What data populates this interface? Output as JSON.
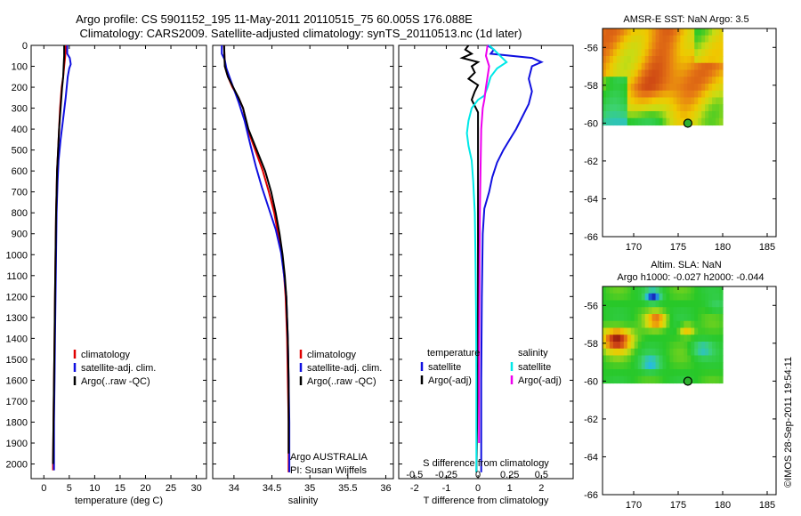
{
  "title": {
    "line1": "Argo profile: CS 5901152_195 11-May-2011 20110515_75 60.005S 176.088E",
    "line2": "Climatology: CARS2009. Satellite-adjusted climatology: synTS_20110513.nc (1d later)"
  },
  "colors": {
    "climatology": "#e00000",
    "satellite": "#1010e0",
    "argo": "#000000",
    "sal_satellite": "#00e8e8",
    "sal_argo": "#ee00ee"
  },
  "chart_data": [
    {
      "type": "line",
      "id": "temperature",
      "xlabel": "temperature (deg C)",
      "xlim": [
        -2.5,
        32
      ],
      "xticks": [
        0,
        5,
        10,
        15,
        20,
        25,
        30
      ],
      "ylim": [
        0,
        2070
      ],
      "yticks": [
        0,
        100,
        200,
        300,
        400,
        500,
        600,
        700,
        800,
        900,
        1000,
        1100,
        1200,
        1300,
        1400,
        1500,
        1600,
        1700,
        1800,
        1900,
        2000
      ],
      "legend": [
        "climatology",
        "satellite-adj. clim.",
        "Argo(..raw -QC)"
      ],
      "series": [
        {
          "name": "climatology",
          "color_key": "climatology",
          "points": [
            [
              4.3,
              0
            ],
            [
              4.2,
              50
            ],
            [
              4.0,
              100
            ],
            [
              3.8,
              150
            ],
            [
              3.5,
              200
            ],
            [
              3.2,
              300
            ],
            [
              3.0,
              400
            ],
            [
              2.8,
              500
            ],
            [
              2.6,
              600
            ],
            [
              2.5,
              700
            ],
            [
              2.4,
              800
            ],
            [
              2.3,
              1000
            ],
            [
              2.2,
              1200
            ],
            [
              2.1,
              1400
            ],
            [
              2.0,
              1600
            ],
            [
              1.9,
              1800
            ],
            [
              1.8,
              2000
            ],
            [
              1.8,
              2030
            ]
          ]
        },
        {
          "name": "satellite-adj. clim.",
          "color_key": "satellite",
          "points": [
            [
              4.6,
              0
            ],
            [
              4.6,
              40
            ],
            [
              5.1,
              60
            ],
            [
              5.3,
              90
            ],
            [
              5.0,
              110
            ],
            [
              4.7,
              150
            ],
            [
              4.3,
              250
            ],
            [
              3.8,
              350
            ],
            [
              3.3,
              450
            ],
            [
              2.9,
              550
            ],
            [
              2.7,
              650
            ],
            [
              2.5,
              800
            ],
            [
              2.4,
              1000
            ],
            [
              2.3,
              1200
            ],
            [
              2.2,
              1400
            ],
            [
              2.1,
              1600
            ],
            [
              2.0,
              1800
            ],
            [
              2.0,
              2030
            ]
          ]
        },
        {
          "name": "Argo(..raw -QC)",
          "color_key": "argo",
          "points": [
            [
              4.0,
              0
            ],
            [
              4.0,
              50
            ],
            [
              3.9,
              100
            ],
            [
              3.8,
              150
            ],
            [
              3.6,
              200
            ],
            [
              3.3,
              300
            ],
            [
              3.0,
              400
            ],
            [
              2.8,
              500
            ],
            [
              2.6,
              600
            ],
            [
              2.5,
              700
            ],
            [
              2.4,
              800
            ],
            [
              2.3,
              1000
            ],
            [
              2.2,
              1200
            ],
            [
              2.1,
              1400
            ],
            [
              2.0,
              1600
            ],
            [
              1.9,
              1800
            ],
            [
              1.8,
              2000
            ]
          ]
        }
      ]
    },
    {
      "type": "line",
      "id": "salinity",
      "xlabel": "salinity",
      "xlim": [
        33.72,
        36.1
      ],
      "xticks": [
        34,
        34.5,
        35,
        35.5,
        36
      ],
      "ylim": [
        0,
        2070
      ],
      "legend": [
        "climatology",
        "satellite-adj. clim.",
        "Argo(..raw -QC)"
      ],
      "annotation": [
        "Argo AUSTRALIA",
        "PI: Susan Wijffels"
      ],
      "series": [
        {
          "name": "climatology",
          "color_key": "climatology",
          "points": [
            [
              33.87,
              0
            ],
            [
              33.88,
              100
            ],
            [
              33.92,
              150
            ],
            [
              33.98,
              200
            ],
            [
              34.06,
              250
            ],
            [
              34.12,
              300
            ],
            [
              34.18,
              400
            ],
            [
              34.28,
              500
            ],
            [
              34.38,
              600
            ],
            [
              34.46,
              700
            ],
            [
              34.53,
              800
            ],
            [
              34.58,
              900
            ],
            [
              34.63,
              1000
            ],
            [
              34.66,
              1100
            ],
            [
              34.68,
              1200
            ],
            [
              34.7,
              1400
            ],
            [
              34.71,
              1600
            ],
            [
              34.72,
              1800
            ],
            [
              34.72,
              2040
            ]
          ]
        },
        {
          "name": "satellite-adj. clim.",
          "color_key": "satellite",
          "points": [
            [
              33.84,
              0
            ],
            [
              33.84,
              40
            ],
            [
              33.88,
              70
            ],
            [
              33.9,
              110
            ],
            [
              33.97,
              180
            ],
            [
              34.02,
              230
            ],
            [
              34.06,
              270
            ],
            [
              34.14,
              360
            ],
            [
              34.22,
              480
            ],
            [
              34.29,
              580
            ],
            [
              34.37,
              680
            ],
            [
              34.46,
              780
            ],
            [
              34.55,
              880
            ],
            [
              34.62,
              990
            ],
            [
              34.66,
              1100
            ],
            [
              34.69,
              1200
            ],
            [
              34.71,
              1400
            ],
            [
              34.72,
              1600
            ],
            [
              34.73,
              1800
            ],
            [
              34.73,
              2040
            ]
          ]
        },
        {
          "name": "Argo(..raw -QC)",
          "color_key": "argo",
          "points": [
            [
              33.87,
              0
            ],
            [
              33.88,
              100
            ],
            [
              33.92,
              150
            ],
            [
              33.99,
              200
            ],
            [
              34.06,
              250
            ],
            [
              34.12,
              300
            ],
            [
              34.19,
              400
            ],
            [
              34.3,
              500
            ],
            [
              34.41,
              600
            ],
            [
              34.49,
              700
            ],
            [
              34.55,
              800
            ],
            [
              34.6,
              900
            ],
            [
              34.64,
              1000
            ],
            [
              34.67,
              1100
            ],
            [
              34.69,
              1200
            ],
            [
              34.71,
              1400
            ],
            [
              34.72,
              1600
            ],
            [
              34.72,
              1800
            ],
            [
              34.72,
              1950
            ]
          ]
        }
      ]
    },
    {
      "type": "line",
      "id": "difference",
      "xlabel": "T difference from climatology",
      "xlabel_top": "S difference from climatology",
      "xlim": [
        -2.5,
        3.0
      ],
      "xticks": [
        -2,
        -1,
        0,
        1,
        2
      ],
      "xtick_labels": [
        "-2",
        "-1",
        "0",
        "1",
        "2"
      ],
      "s_ticks": [
        "-0.5",
        "-0.25",
        "0",
        "0.25",
        "0.5"
      ],
      "ylim": [
        0,
        2070
      ],
      "legend_left_title": "temperature",
      "legend_right_title": "salinity",
      "legend_left": [
        "satellite",
        "Argo(-adj)"
      ],
      "legend_right": [
        "satellite",
        "Argo(-adj)"
      ],
      "series": [
        {
          "name": "T satellite",
          "color_key": "satellite",
          "points": [
            [
              0.3,
              0
            ],
            [
              0.5,
              20
            ],
            [
              0.4,
              40
            ],
            [
              1.7,
              60
            ],
            [
              2.0,
              80
            ],
            [
              1.7,
              100
            ],
            [
              1.6,
              160
            ],
            [
              1.7,
              220
            ],
            [
              1.6,
              280
            ],
            [
              1.4,
              340
            ],
            [
              1.2,
              400
            ],
            [
              1.0,
              450
            ],
            [
              0.8,
              500
            ],
            [
              0.6,
              560
            ],
            [
              0.45,
              630
            ],
            [
              0.35,
              700
            ],
            [
              0.2,
              780
            ],
            [
              0.15,
              900
            ],
            [
              0.12,
              1200
            ],
            [
              0.1,
              1600
            ],
            [
              0.1,
              2040
            ]
          ]
        },
        {
          "name": "T Argo(-adj)",
          "color_key": "argo",
          "points": [
            [
              -0.3,
              0
            ],
            [
              -0.4,
              20
            ],
            [
              -0.2,
              40
            ],
            [
              -0.5,
              60
            ],
            [
              0.0,
              80
            ],
            [
              -0.2,
              100
            ],
            [
              -0.1,
              130
            ],
            [
              -0.3,
              160
            ],
            [
              0.0,
              190
            ],
            [
              -0.1,
              220
            ],
            [
              -0.2,
              260
            ],
            [
              0.0,
              320
            ],
            [
              0.0,
              600
            ],
            [
              0.0,
              1000
            ],
            [
              0.0,
              1500
            ],
            [
              -0.05,
              2040
            ]
          ]
        },
        {
          "name": "S satellite",
          "color_key": "sal_satellite",
          "points": [
            [
              0.35,
              0
            ],
            [
              0.5,
              20
            ],
            [
              0.7,
              50
            ],
            [
              0.9,
              80
            ],
            [
              0.6,
              110
            ],
            [
              0.4,
              150
            ],
            [
              0.3,
              200
            ],
            [
              0.2,
              240
            ],
            [
              0.0,
              260
            ],
            [
              -0.2,
              300
            ],
            [
              -0.3,
              360
            ],
            [
              -0.35,
              420
            ],
            [
              -0.3,
              480
            ],
            [
              -0.2,
              550
            ],
            [
              -0.15,
              650
            ],
            [
              -0.1,
              800
            ],
            [
              -0.08,
              1000
            ],
            [
              -0.06,
              1300
            ],
            [
              -0.05,
              1600
            ],
            [
              -0.05,
              2040
            ]
          ]
        },
        {
          "name": "S Argo(-adj)",
          "color_key": "sal_argo",
          "points": [
            [
              0.3,
              0
            ],
            [
              0.25,
              50
            ],
            [
              0.35,
              100
            ],
            [
              0.3,
              150
            ],
            [
              0.25,
              200
            ],
            [
              0.2,
              260
            ],
            [
              0.15,
              300
            ],
            [
              0.1,
              400
            ],
            [
              0.08,
              600
            ],
            [
              0.06,
              800
            ],
            [
              0.05,
              1000
            ],
            [
              0.04,
              1300
            ],
            [
              0.03,
              1600
            ],
            [
              0.03,
              1900
            ]
          ]
        }
      ]
    },
    {
      "type": "heatmap",
      "id": "sst-map",
      "title": "AMSR-E SST: NaN Argo: 3.5",
      "xlim": [
        166.5,
        186
      ],
      "xticks": [
        170,
        175,
        180,
        185
      ],
      "ylim": [
        -66,
        -55
      ],
      "yticks": [
        -56,
        -58,
        -60,
        -62,
        -64,
        -66
      ],
      "argo_position": [
        176.088,
        -60.005
      ]
    },
    {
      "type": "heatmap",
      "id": "sla-map",
      "title": "Altim. SLA: NaN",
      "subtitle": "Argo h1000: -0.027 h2000: -0.044",
      "xlim": [
        166.5,
        186
      ],
      "xticks": [
        170,
        175,
        180,
        185
      ],
      "ylim": [
        -66,
        -55
      ],
      "yticks": [
        -56,
        -58,
        -60,
        -62,
        -64,
        -66
      ],
      "argo_position": [
        176.088,
        -60.005
      ]
    }
  ],
  "footer": {
    "stamp": "©IMOS 28-Sep-2011 19:54:11"
  }
}
